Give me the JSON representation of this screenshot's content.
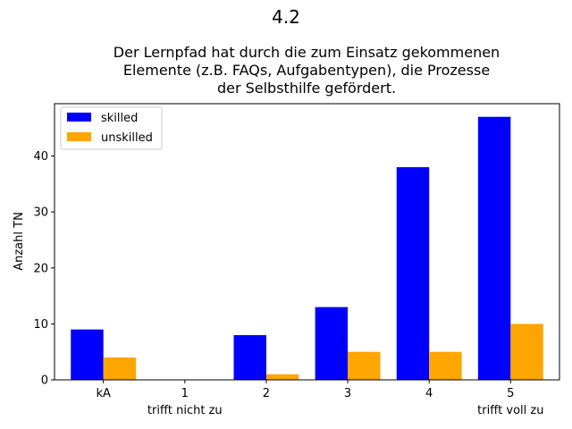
{
  "chart_data": {
    "type": "bar",
    "suptitle": "4.2",
    "title_lines": [
      "Der Lernpfad hat durch die zum Einsatz gekommenen",
      "Elemente (z.B. FAQs, Aufgabentypen), die Prozesse",
      "der Selbsthilfe gefördert."
    ],
    "xlabel": "",
    "ylabel": "Anzahl TN",
    "categories": [
      "kA",
      "1",
      "2",
      "3",
      "4",
      "5"
    ],
    "category_sublabels": {
      "1": "trifft nicht zu",
      "5": "trifft voll zu"
    },
    "series": [
      {
        "name": "skilled",
        "color": "#0000ff",
        "values": [
          9,
          0,
          8,
          13,
          38,
          47
        ]
      },
      {
        "name": "unskilled",
        "color": "#ffa500",
        "values": [
          4,
          0,
          1,
          5,
          5,
          10
        ]
      }
    ],
    "ylim": [
      0,
      49.35
    ],
    "yticks": [
      0,
      10,
      20,
      30,
      40
    ],
    "legend_position": "top-left",
    "grid": false
  }
}
